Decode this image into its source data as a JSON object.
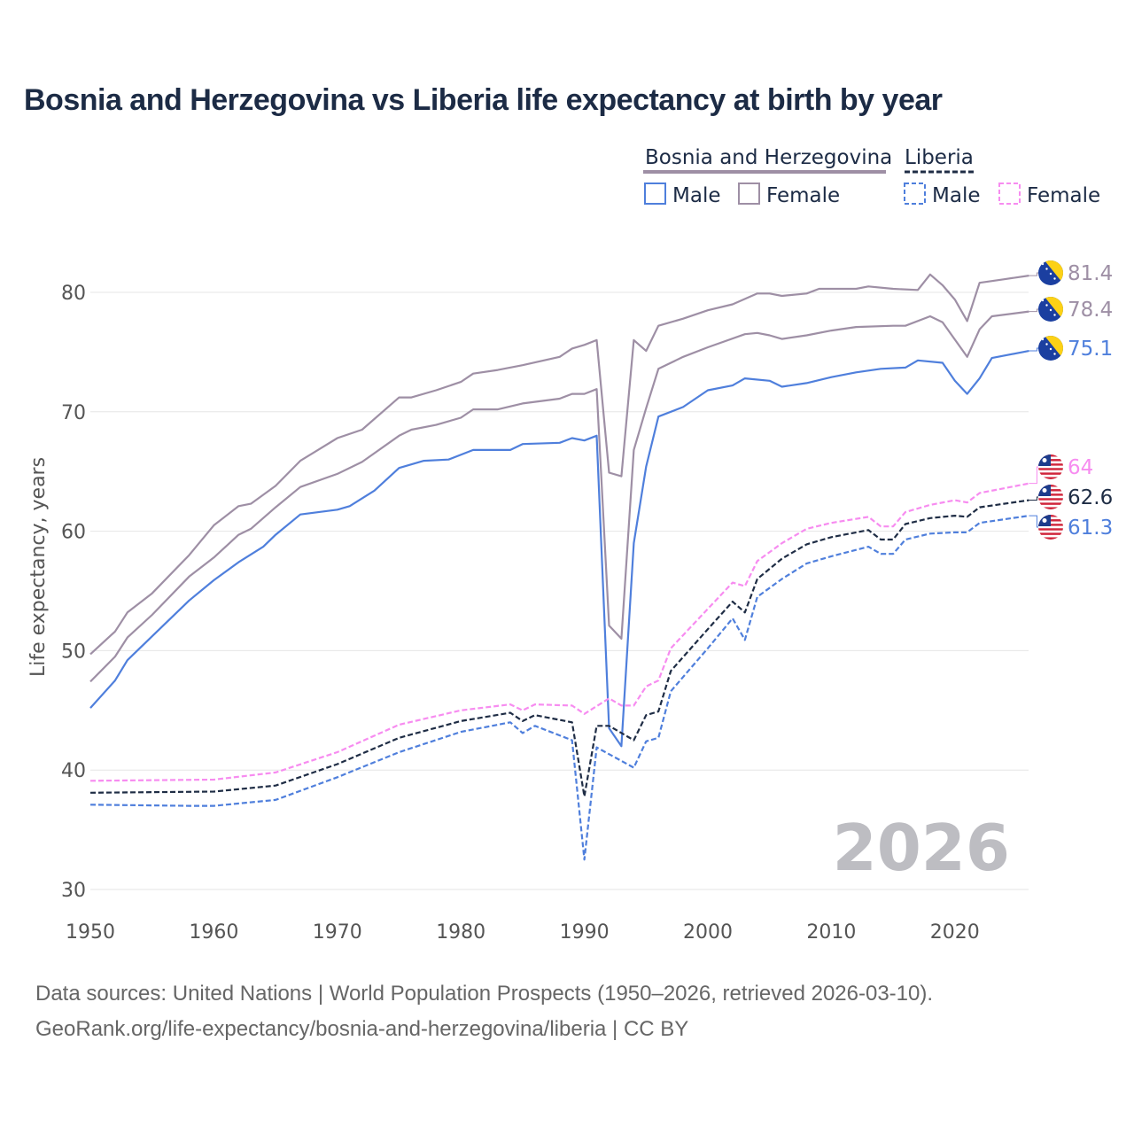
{
  "chart_data": {
    "type": "line",
    "title": "Bosnia and Herzegovina vs Liberia life expectancy at birth by year",
    "ylabel": "Life expectancy, years",
    "xlabel": "",
    "xlim": [
      1950,
      2026
    ],
    "ylim": [
      30,
      83
    ],
    "x_ticks": [
      "1950",
      "1960",
      "1970",
      "1980",
      "1990",
      "2000",
      "2010",
      "2020"
    ],
    "y_ticks": [
      "30",
      "40",
      "50",
      "60",
      "70",
      "80"
    ],
    "grid": true,
    "watermark_year": "2026",
    "legend": {
      "placement": "top-right",
      "groups": [
        {
          "name": "Bosnia and Herzegovina",
          "items": [
            "Male",
            "Female"
          ]
        },
        {
          "name": "Liberia",
          "items": [
            "Male",
            "Female"
          ]
        }
      ]
    },
    "series": [
      {
        "name": "Bosnia and Herzegovina Female",
        "color": "#9e8fa5",
        "dashed": false,
        "end_label": "81.4",
        "flag": "bosnia",
        "points": [
          [
            1950,
            49.7
          ],
          [
            1952,
            51.6
          ],
          [
            1953,
            53.2
          ],
          [
            1955,
            54.8
          ],
          [
            1958,
            58.0
          ],
          [
            1960,
            60.5
          ],
          [
            1962,
            62.1
          ],
          [
            1963,
            62.3
          ],
          [
            1965,
            63.8
          ],
          [
            1967,
            65.9
          ],
          [
            1970,
            67.8
          ],
          [
            1972,
            68.5
          ],
          [
            1975,
            71.2
          ],
          [
            1976,
            71.2
          ],
          [
            1978,
            71.8
          ],
          [
            1980,
            72.5
          ],
          [
            1981,
            73.2
          ],
          [
            1983,
            73.5
          ],
          [
            1985,
            73.9
          ],
          [
            1988,
            74.6
          ],
          [
            1989,
            75.3
          ],
          [
            1990,
            75.6
          ],
          [
            1991,
            76.0
          ],
          [
            1992,
            64.9
          ],
          [
            1993,
            64.6
          ],
          [
            1994,
            76.0
          ],
          [
            1995,
            75.1
          ],
          [
            1996,
            77.2
          ],
          [
            1998,
            77.8
          ],
          [
            2000,
            78.5
          ],
          [
            2002,
            79.0
          ],
          [
            2004,
            79.9
          ],
          [
            2005,
            79.9
          ],
          [
            2006,
            79.7
          ],
          [
            2008,
            79.9
          ],
          [
            2009,
            80.3
          ],
          [
            2012,
            80.3
          ],
          [
            2013,
            80.5
          ],
          [
            2015,
            80.3
          ],
          [
            2017,
            80.2
          ],
          [
            2018,
            81.5
          ],
          [
            2019,
            80.6
          ],
          [
            2020,
            79.4
          ],
          [
            2021,
            77.6
          ],
          [
            2022,
            80.8
          ],
          [
            2024,
            81.1
          ],
          [
            2026,
            81.4
          ]
        ]
      },
      {
        "name": "Bosnia and Herzegovina Total",
        "color": "#9e8fa5",
        "dashed": false,
        "end_label": "78.4",
        "flag": "bosnia",
        "points": [
          [
            1950,
            47.4
          ],
          [
            1952,
            49.5
          ],
          [
            1953,
            51.1
          ],
          [
            1955,
            53.0
          ],
          [
            1958,
            56.2
          ],
          [
            1960,
            57.8
          ],
          [
            1962,
            59.7
          ],
          [
            1963,
            60.2
          ],
          [
            1965,
            62.0
          ],
          [
            1967,
            63.7
          ],
          [
            1970,
            64.8
          ],
          [
            1972,
            65.8
          ],
          [
            1975,
            68.0
          ],
          [
            1976,
            68.5
          ],
          [
            1978,
            68.9
          ],
          [
            1980,
            69.5
          ],
          [
            1981,
            70.2
          ],
          [
            1983,
            70.2
          ],
          [
            1985,
            70.7
          ],
          [
            1988,
            71.1
          ],
          [
            1989,
            71.5
          ],
          [
            1990,
            71.5
          ],
          [
            1991,
            71.9
          ],
          [
            1992,
            52.1
          ],
          [
            1993,
            51.0
          ],
          [
            1994,
            66.8
          ],
          [
            1995,
            70.3
          ],
          [
            1996,
            73.6
          ],
          [
            1998,
            74.6
          ],
          [
            2000,
            75.4
          ],
          [
            2003,
            76.5
          ],
          [
            2004,
            76.6
          ],
          [
            2005,
            76.4
          ],
          [
            2006,
            76.1
          ],
          [
            2008,
            76.4
          ],
          [
            2010,
            76.8
          ],
          [
            2012,
            77.1
          ],
          [
            2015,
            77.2
          ],
          [
            2016,
            77.2
          ],
          [
            2018,
            78.0
          ],
          [
            2019,
            77.5
          ],
          [
            2021,
            74.6
          ],
          [
            2022,
            76.9
          ],
          [
            2023,
            78.0
          ],
          [
            2026,
            78.4
          ]
        ]
      },
      {
        "name": "Bosnia and Herzegovina Male",
        "color": "#4f7fdc",
        "dashed": false,
        "end_label": "75.1",
        "flag": "bosnia",
        "points": [
          [
            1950,
            45.2
          ],
          [
            1952,
            47.5
          ],
          [
            1953,
            49.2
          ],
          [
            1955,
            51.2
          ],
          [
            1958,
            54.2
          ],
          [
            1960,
            55.9
          ],
          [
            1962,
            57.4
          ],
          [
            1964,
            58.7
          ],
          [
            1965,
            59.7
          ],
          [
            1967,
            61.4
          ],
          [
            1970,
            61.8
          ],
          [
            1971,
            62.1
          ],
          [
            1973,
            63.4
          ],
          [
            1975,
            65.3
          ],
          [
            1977,
            65.9
          ],
          [
            1979,
            66.0
          ],
          [
            1981,
            66.8
          ],
          [
            1984,
            66.8
          ],
          [
            1985,
            67.3
          ],
          [
            1988,
            67.4
          ],
          [
            1989,
            67.8
          ],
          [
            1990,
            67.6
          ],
          [
            1991,
            68.0
          ],
          [
            1992,
            43.5
          ],
          [
            1993,
            42.0
          ],
          [
            1994,
            59.0
          ],
          [
            1995,
            65.4
          ],
          [
            1996,
            69.6
          ],
          [
            1998,
            70.4
          ],
          [
            2000,
            71.8
          ],
          [
            2002,
            72.2
          ],
          [
            2003,
            72.8
          ],
          [
            2005,
            72.6
          ],
          [
            2006,
            72.1
          ],
          [
            2008,
            72.4
          ],
          [
            2010,
            72.9
          ],
          [
            2012,
            73.3
          ],
          [
            2014,
            73.6
          ],
          [
            2016,
            73.7
          ],
          [
            2017,
            74.3
          ],
          [
            2019,
            74.1
          ],
          [
            2020,
            72.6
          ],
          [
            2021,
            71.5
          ],
          [
            2022,
            72.8
          ],
          [
            2023,
            74.5
          ],
          [
            2026,
            75.1
          ]
        ]
      },
      {
        "name": "Liberia Female",
        "color": "#f78cf0",
        "dashed": true,
        "end_label": "64",
        "flag": "liberia",
        "points": [
          [
            1950,
            39.1
          ],
          [
            1960,
            39.2
          ],
          [
            1965,
            39.8
          ],
          [
            1970,
            41.5
          ],
          [
            1975,
            43.8
          ],
          [
            1980,
            45.0
          ],
          [
            1984,
            45.5
          ],
          [
            1985,
            45.0
          ],
          [
            1986,
            45.5
          ],
          [
            1989,
            45.4
          ],
          [
            1990,
            44.7
          ],
          [
            1992,
            46.0
          ],
          [
            1993,
            45.4
          ],
          [
            1994,
            45.4
          ],
          [
            1995,
            47.0
          ],
          [
            1996,
            47.5
          ],
          [
            1997,
            50.2
          ],
          [
            2000,
            53.5
          ],
          [
            2002,
            55.7
          ],
          [
            2003,
            55.4
          ],
          [
            2004,
            57.5
          ],
          [
            2006,
            59.0
          ],
          [
            2008,
            60.2
          ],
          [
            2010,
            60.7
          ],
          [
            2013,
            61.2
          ],
          [
            2014,
            60.4
          ],
          [
            2015,
            60.4
          ],
          [
            2016,
            61.6
          ],
          [
            2018,
            62.2
          ],
          [
            2020,
            62.6
          ],
          [
            2021,
            62.4
          ],
          [
            2022,
            63.2
          ],
          [
            2026,
            64.0
          ]
        ]
      },
      {
        "name": "Liberia Total",
        "color": "#1f2d45",
        "dashed": true,
        "end_label": "62.6",
        "flag": "liberia",
        "points": [
          [
            1950,
            38.1
          ],
          [
            1960,
            38.2
          ],
          [
            1965,
            38.7
          ],
          [
            1970,
            40.5
          ],
          [
            1975,
            42.7
          ],
          [
            1980,
            44.1
          ],
          [
            1984,
            44.8
          ],
          [
            1985,
            44.1
          ],
          [
            1986,
            44.6
          ],
          [
            1989,
            44.0
          ],
          [
            1990,
            37.8
          ],
          [
            1991,
            43.7
          ],
          [
            1992,
            43.7
          ],
          [
            1994,
            42.5
          ],
          [
            1995,
            44.6
          ],
          [
            1996,
            44.9
          ],
          [
            1997,
            48.3
          ],
          [
            2000,
            51.8
          ],
          [
            2002,
            54.1
          ],
          [
            2003,
            53.2
          ],
          [
            2004,
            56.0
          ],
          [
            2006,
            57.7
          ],
          [
            2008,
            58.9
          ],
          [
            2010,
            59.5
          ],
          [
            2013,
            60.1
          ],
          [
            2014,
            59.3
          ],
          [
            2015,
            59.3
          ],
          [
            2016,
            60.6
          ],
          [
            2018,
            61.1
          ],
          [
            2020,
            61.3
          ],
          [
            2021,
            61.2
          ],
          [
            2022,
            62.0
          ],
          [
            2026,
            62.6
          ]
        ]
      },
      {
        "name": "Liberia Male",
        "color": "#4f7fdc",
        "dashed": true,
        "end_label": "61.3",
        "flag": "liberia",
        "points": [
          [
            1950,
            37.1
          ],
          [
            1958,
            37.0
          ],
          [
            1960,
            37.0
          ],
          [
            1965,
            37.5
          ],
          [
            1970,
            39.4
          ],
          [
            1975,
            41.5
          ],
          [
            1980,
            43.2
          ],
          [
            1984,
            44.0
          ],
          [
            1985,
            43.1
          ],
          [
            1986,
            43.7
          ],
          [
            1989,
            42.5
          ],
          [
            1990,
            32.5
          ],
          [
            1991,
            41.9
          ],
          [
            1994,
            40.2
          ],
          [
            1995,
            42.4
          ],
          [
            1996,
            42.7
          ],
          [
            1997,
            46.6
          ],
          [
            2000,
            50.2
          ],
          [
            2002,
            52.7
          ],
          [
            2003,
            50.9
          ],
          [
            2004,
            54.5
          ],
          [
            2006,
            56.0
          ],
          [
            2008,
            57.3
          ],
          [
            2010,
            57.9
          ],
          [
            2013,
            58.7
          ],
          [
            2014,
            58.1
          ],
          [
            2015,
            58.1
          ],
          [
            2016,
            59.3
          ],
          [
            2018,
            59.8
          ],
          [
            2020,
            59.9
          ],
          [
            2021,
            59.9
          ],
          [
            2022,
            60.7
          ],
          [
            2026,
            61.3
          ]
        ]
      }
    ]
  },
  "footer": {
    "line1": "Data sources: United Nations | World Population Prospects (1950–2026, retrieved 2026-03-10).",
    "line2": "GeoRank.org/life-expectancy/bosnia-and-herzegovina/liberia | CC BY"
  }
}
